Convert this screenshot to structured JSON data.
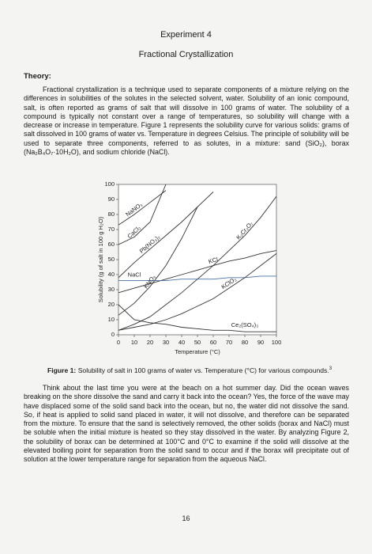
{
  "header": {
    "title": "Experiment 4",
    "subtitle": "Fractional Crystallization"
  },
  "theory": {
    "heading": "Theory:",
    "paragraph": "Fractional crystallization is a technique used to separate components of a mixture relying on the differences in solubilities of the solutes in the selected solvent, water. Solubility of an ionic compound, salt, is often reported as grams of salt that will dissolve in 100 grams of water. The solubility of a compound is typically not constant over a range of temperatures, so solubility will change with a decrease or increase in temperature. Figure 1 represents the solubility curve for various solids: grams of salt dissolved in 100 grams of water vs. Temperature in degrees Celsius. The principle of solubility will be used to separate three components, referred to as solutes, in a mixture: sand (SiO₂), borax (Na₂B₄O₇·10H₂O), and sodium chloride (NaCl)."
  },
  "chart_data": {
    "type": "line",
    "x_label": "Temperature (°C)",
    "y_label": "Solubility (g of salt in 100 g H₂O)",
    "xlim": [
      0,
      100
    ],
    "ylim": [
      0,
      100
    ],
    "xticks": [
      0,
      10,
      20,
      30,
      40,
      50,
      60,
      70,
      80,
      90,
      100
    ],
    "yticks": [
      0,
      10,
      20,
      30,
      40,
      50,
      60,
      70,
      80,
      90,
      100
    ],
    "grid": false,
    "series": [
      {
        "name": "NaNO₃",
        "color": "#333333",
        "x": [
          0,
          10,
          20,
          30
        ],
        "values": [
          73,
          80,
          88,
          96
        ]
      },
      {
        "name": "CaCl₂",
        "color": "#333333",
        "x": [
          0,
          10,
          20,
          30
        ],
        "values": [
          60,
          65,
          75,
          100
        ]
      },
      {
        "name": "Pb(NO₃)₂",
        "color": "#333333",
        "x": [
          0,
          10,
          20,
          30,
          40,
          50,
          60
        ],
        "values": [
          38,
          48,
          57,
          66,
          75,
          85,
          95
        ]
      },
      {
        "name": "KNO₃",
        "color": "#333333",
        "x": [
          0,
          10,
          20,
          30,
          40,
          50
        ],
        "values": [
          13,
          21,
          32,
          46,
          64,
          85
        ]
      },
      {
        "name": "K₂Cr₂O₇",
        "color": "#333333",
        "x": [
          0,
          10,
          20,
          30,
          40,
          50,
          60,
          70,
          80,
          90,
          100
        ],
        "values": [
          3,
          7,
          12,
          20,
          28,
          37,
          46,
          56,
          66,
          78,
          92
        ]
      },
      {
        "name": "KCl",
        "color": "#333333",
        "x": [
          0,
          10,
          20,
          30,
          40,
          50,
          60,
          70,
          80,
          90,
          100
        ],
        "values": [
          28,
          31,
          34,
          37,
          40,
          43,
          46,
          49,
          51,
          54,
          56
        ]
      },
      {
        "name": "NaCl",
        "color": "#4a6fa5",
        "x": [
          0,
          10,
          20,
          30,
          40,
          50,
          60,
          70,
          80,
          90,
          100
        ],
        "values": [
          36,
          36,
          36,
          36,
          37,
          37,
          37,
          38,
          38,
          39,
          39
        ]
      },
      {
        "name": "KClO₃",
        "color": "#333333",
        "x": [
          0,
          10,
          20,
          30,
          40,
          50,
          60,
          70,
          80,
          90,
          100
        ],
        "values": [
          3,
          5,
          7,
          10,
          14,
          19,
          24,
          31,
          38,
          46,
          54
        ]
      },
      {
        "name": "Ce₂(SO₄)₃",
        "color": "#333333",
        "x": [
          0,
          10,
          20,
          30,
          40,
          50,
          60,
          70,
          80,
          90,
          100
        ],
        "values": [
          20,
          10,
          8,
          7,
          5,
          4,
          3,
          3,
          2,
          2,
          2
        ]
      }
    ]
  },
  "caption": {
    "label": "Figure 1:",
    "text": "Solubility of salt in 100 grams of water vs. Temperature (°C) for various compounds.",
    "footnote": "3"
  },
  "body": {
    "paragraph": "Think about the last time you were at the beach on a hot summer day. Did the ocean waves breaking on the shore dissolve the sand and carry it back into the ocean? Yes, the force of the wave may have displaced some of the solid sand back into the ocean, but no, the water did not dissolve the sand. So, if heat is applied to solid sand placed in water, it will not dissolve, and therefore can be separated from the mixture. To ensure that the sand is selectively removed, the other solids (borax and NaCl) must be soluble when the initial mixture is heated so they stay dissolved in the water. By analyzing Figure 2, the solubility of borax can be determined at 100°C and 0°C to examine if the solid will dissolve at the elevated boiling point for separation from the solid sand to occur and if the borax will precipitate out of solution at the lower temperature range for separation from the aqueous NaCl."
  },
  "footer": {
    "page_number": "16"
  }
}
